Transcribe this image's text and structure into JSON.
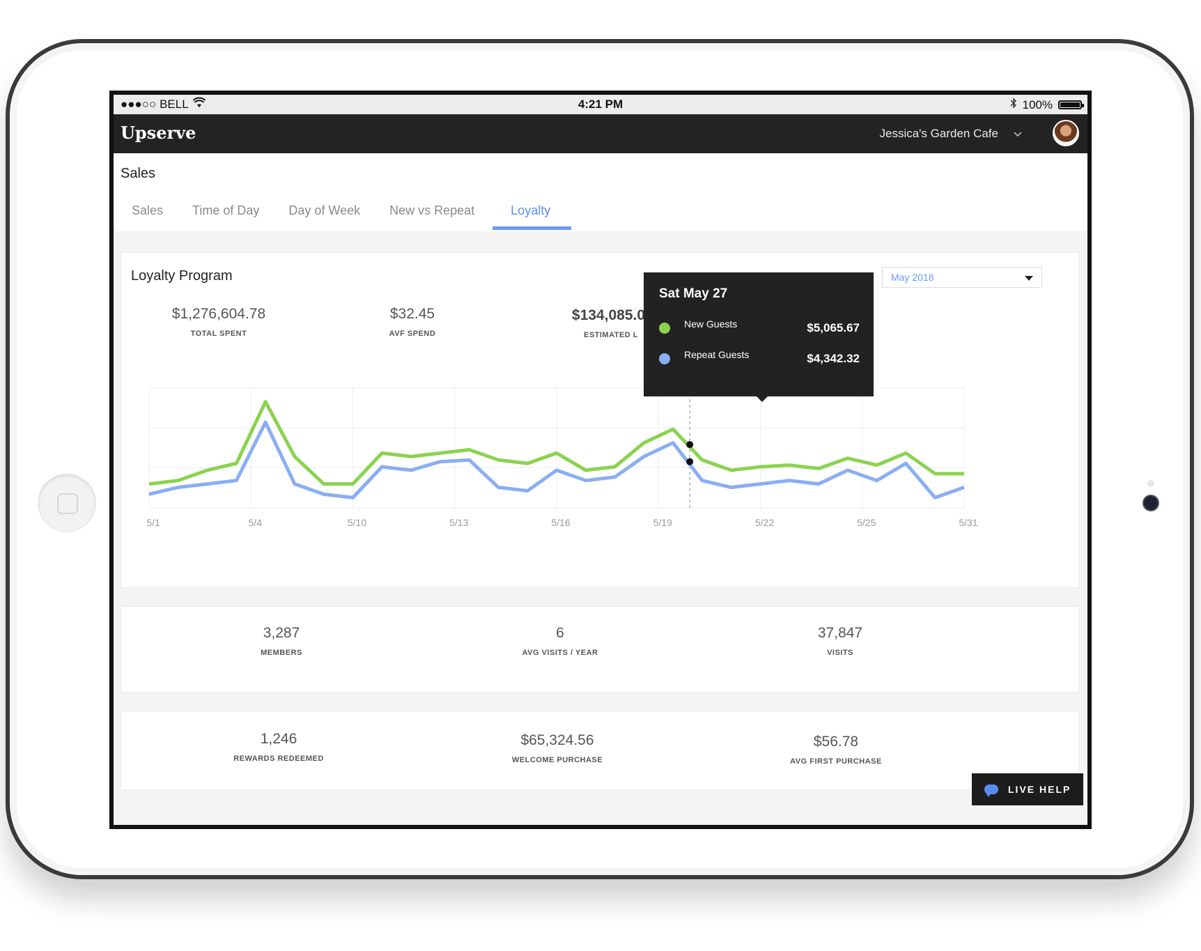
{
  "status_bar": {
    "carrier": "●●●○○ BELL",
    "time": "4:21 PM",
    "battery": "100%"
  },
  "app": {
    "logo": "Upserve",
    "venue": "Jessica's Garden Cafe"
  },
  "page": {
    "title": "Sales",
    "tabs": [
      {
        "label": "Sales"
      },
      {
        "label": "Time of Day"
      },
      {
        "label": "Day of Week"
      },
      {
        "label": "New vs Repeat"
      },
      {
        "label": "Loyalty"
      }
    ],
    "active_tab": "Loyalty"
  },
  "loyalty_card": {
    "title": "Loyalty Program",
    "month": "May 2018",
    "stats": [
      {
        "value": "$1,276,604.78",
        "label": "TOTAL SPENT"
      },
      {
        "value": "$32.45",
        "label": "AVF SPEND"
      },
      {
        "value": "$134,085.0",
        "label": "ESTIMATED L"
      }
    ]
  },
  "tooltip": {
    "title": "Sat May 27",
    "rows": [
      {
        "name": "New Guests",
        "value": "$5,065.67",
        "color": "#8bd34f"
      },
      {
        "name": "Repeat Guests",
        "value": "$4,342.32",
        "color": "#8aaef2"
      }
    ]
  },
  "chart_data": {
    "type": "line",
    "x_tick_labels": [
      "5/1",
      "5/4",
      "5/10",
      "5/13",
      "5/16",
      "5/19",
      "5/22",
      "5/25",
      "5/31"
    ],
    "grid": true,
    "series": [
      {
        "name": "New Guests",
        "color": "#8bd34f",
        "values": [
          14,
          16,
          22,
          26,
          62,
          30,
          14,
          14,
          32,
          30,
          32,
          34,
          28,
          26,
          32,
          22,
          24,
          38,
          46,
          28,
          22,
          24,
          25,
          23,
          29,
          25,
          32,
          20,
          20
        ]
      },
      {
        "name": "Repeat Guests",
        "color": "#8aaef2",
        "values": [
          8,
          12,
          14,
          16,
          50,
          14,
          8,
          6,
          24,
          22,
          27,
          28,
          12,
          10,
          22,
          16,
          18,
          30,
          38,
          16,
          12,
          14,
          16,
          14,
          22,
          16,
          26,
          6,
          12
        ]
      }
    ],
    "hover_index": 18
  },
  "members_card": {
    "stats": [
      {
        "value": "3,287",
        "label": "MEMBERS"
      },
      {
        "value": "6",
        "label": "AVG VISITS / YEAR"
      },
      {
        "value": "37,847",
        "label": "VISITS"
      }
    ]
  },
  "rewards_card": {
    "stats": [
      {
        "value": "1,246",
        "label": "REWARDS REDEEMED"
      },
      {
        "value": "$65,324.56",
        "label": "WELCOME PURCHASE"
      },
      {
        "value": "$56.78",
        "label": "AVG FIRST PURCHASE"
      }
    ]
  },
  "live_help": {
    "label": "LIVE HELP"
  }
}
